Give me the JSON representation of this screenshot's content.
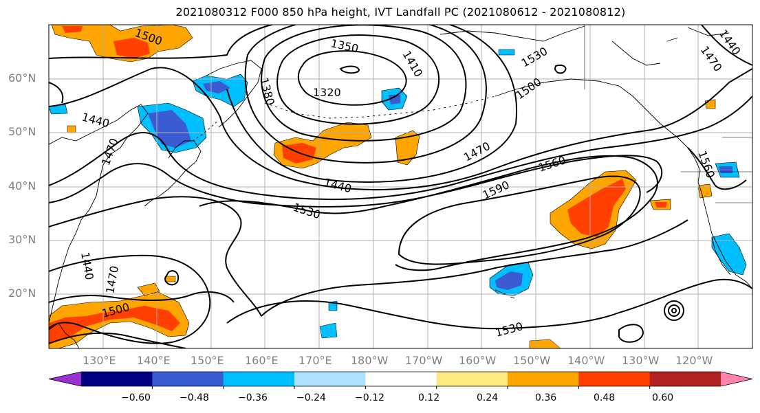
{
  "title": "2021080312 F000 850 hPa height, IVT Landfall PC (2021080612 - 2021080812)",
  "lat_labels": [
    "60°N",
    "50°N",
    "40°N",
    "30°N",
    "20°N"
  ],
  "lon_labels": [
    "130°E",
    "140°E",
    "150°E",
    "160°E",
    "170°E",
    "180°W",
    "170°W",
    "160°W",
    "150°W",
    "140°W",
    "130°W",
    "120°W"
  ],
  "contour_labels": [
    "1500",
    "1350",
    "1410",
    "1530",
    "1320",
    "1380",
    "1500",
    "1440",
    "1470",
    "1470",
    "1560",
    "1440",
    "1590",
    "1530",
    "1560",
    "1440",
    "1470",
    "1500",
    "1530",
    "1470",
    "1440"
  ],
  "colorbar": {
    "ticks": [
      "−0.60",
      "−0.48",
      "−0.36",
      "−0.24",
      "−0.12",
      "0.12",
      "0.24",
      "0.36",
      "0.48",
      "0.60"
    ],
    "colors": [
      "#9b30d0",
      "#000080",
      "#3a5bd1",
      "#00bfff",
      "#b0e0ff",
      "#ffffff",
      "#ffea80",
      "#ffa500",
      "#ff4000",
      "#b22222",
      "#ff82ab"
    ]
  },
  "colors": {
    "contour": "#000000",
    "coast": "#000000",
    "grid": "#b0b0b0",
    "axis_label": "#7f7f7f"
  }
}
